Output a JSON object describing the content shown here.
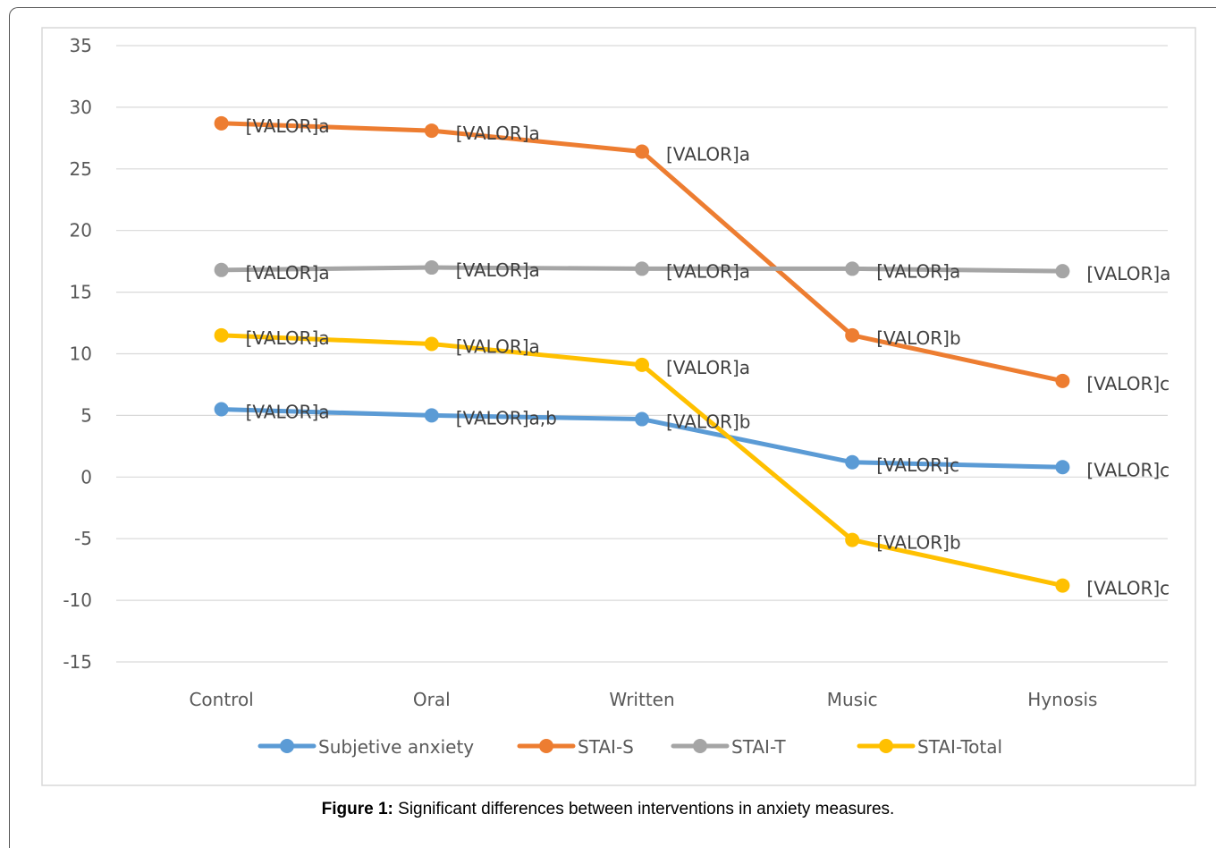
{
  "caption": {
    "label": "Figure 1:",
    "text": "Significant differences between interventions in anxiety measures."
  },
  "chart_data": {
    "type": "line",
    "title": "",
    "xlabel": "",
    "ylabel": "",
    "categories": [
      "Control",
      "Oral",
      "Written",
      "Music",
      "Hynosis"
    ],
    "ylim": [
      -15,
      35
    ],
    "yticks": [
      35,
      30,
      25,
      20,
      15,
      10,
      5,
      0,
      -5,
      -10,
      -15
    ],
    "grid": "horizontal",
    "legend_position": "bottom",
    "series": [
      {
        "name": "Subjetive anxiety",
        "color": "#5b9bd5",
        "values": [
          5.5,
          5.0,
          4.7,
          1.2,
          0.8
        ],
        "labels": [
          "[VALOR]a",
          "[VALOR]a,b",
          "[VALOR]b",
          "[VALOR]c",
          "[VALOR]c"
        ]
      },
      {
        "name": "STAI-S",
        "color": "#ed7d31",
        "values": [
          28.7,
          28.1,
          26.4,
          11.5,
          7.8
        ],
        "labels": [
          "[VALOR]a",
          "[VALOR]a",
          "[VALOR]a",
          "[VALOR]b",
          "[VALOR]c"
        ]
      },
      {
        "name": "STAI-T",
        "color": "#a5a5a5",
        "values": [
          16.8,
          17.0,
          16.9,
          16.9,
          16.7
        ],
        "labels": [
          "[VALOR]a",
          "[VALOR]a",
          "[VALOR]a",
          "[VALOR]a",
          "[VALOR]a"
        ]
      },
      {
        "name": "STAI-Total",
        "color": "#ffc000",
        "values": [
          11.5,
          10.8,
          9.1,
          -5.1,
          -8.8
        ],
        "labels": [
          "[VALOR]a",
          "[VALOR]a",
          "[VALOR]a",
          "[VALOR]b",
          "[VALOR]c"
        ]
      }
    ]
  }
}
